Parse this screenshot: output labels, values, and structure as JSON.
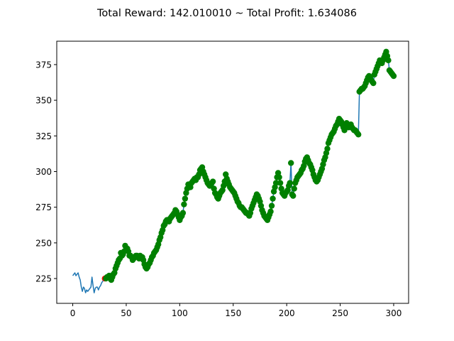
{
  "chart_data": {
    "type": "line",
    "title": "Total Reward: 142.010010 ~ Total Profit: 1.634086",
    "xlabel": "",
    "ylabel": "",
    "xlim": [
      -14.95,
      313.95
    ],
    "ylim": [
      207.6,
      391.4
    ],
    "xticks": [
      0,
      50,
      100,
      150,
      200,
      250,
      300
    ],
    "yticks": [
      225,
      250,
      275,
      300,
      325,
      350,
      375
    ],
    "grid": false,
    "legend": "none",
    "colors": {
      "line": "#1f77b4",
      "long": "#008000",
      "short": "#ff0000"
    },
    "series": [
      {
        "values": [
          227,
          228,
          229,
          227,
          228,
          229,
          226,
          224,
          219,
          216,
          219,
          218,
          215,
          217,
          216,
          217,
          218,
          219,
          226,
          220,
          215,
          218,
          219,
          219,
          217,
          219,
          220,
          222,
          223,
          225,
          225,
          225,
          226,
          226,
          227,
          225,
          224,
          226,
          228,
          229,
          232,
          234,
          236,
          238,
          239,
          243,
          241,
          242,
          244,
          248,
          246,
          246,
          244,
          241,
          241,
          240,
          238,
          239,
          240,
          241,
          241,
          240,
          239,
          241,
          240,
          240,
          238,
          235,
          233,
          232,
          233,
          235,
          236,
          238,
          240,
          241,
          243,
          244,
          245,
          247,
          249,
          252,
          254,
          257,
          259,
          262,
          263,
          265,
          266,
          266,
          265,
          267,
          268,
          269,
          270,
          271,
          273,
          272,
          270,
          268,
          266,
          268,
          269,
          271,
          277,
          281,
          285,
          288,
          291,
          290,
          289,
          292,
          293,
          294,
          295,
          294,
          296,
          296,
          298,
          301,
          302,
          303,
          300,
          298,
          296,
          294,
          292,
          291,
          290,
          291,
          292,
          293,
          288,
          285,
          284,
          282,
          281,
          283,
          285,
          286,
          287,
          290,
          293,
          298,
          295,
          293,
          291,
          289,
          288,
          287,
          286,
          285,
          283,
          281,
          279,
          278,
          276,
          275,
          275,
          274,
          273,
          272,
          271,
          271,
          270,
          269,
          271,
          274,
          276,
          278,
          280,
          282,
          284,
          283,
          281,
          279,
          276,
          273,
          271,
          269,
          268,
          267,
          266,
          268,
          270,
          272,
          276,
          281,
          286,
          289,
          292,
          296,
          299,
          296,
          292,
          288,
          285,
          284,
          283,
          285,
          286,
          287,
          290,
          292,
          306,
          284,
          283,
          288,
          292,
          294,
          296,
          297,
          298,
          299,
          301,
          302,
          304,
          307,
          309,
          310,
          308,
          306,
          305,
          303,
          301,
          298,
          296,
          294,
          293,
          294,
          296,
          298,
          300,
          302,
          305,
          308,
          310,
          313,
          316,
          320,
          322,
          324,
          326,
          327,
          328,
          330,
          332,
          333,
          335,
          337,
          336,
          335,
          333,
          331,
          329,
          332,
          334,
          333,
          331,
          332,
          333,
          331,
          330,
          329,
          329,
          328,
          327,
          326,
          356,
          357,
          358,
          358,
          359,
          360,
          362,
          364,
          366,
          367,
          366,
          364,
          363,
          362,
          368,
          370,
          372,
          374,
          376,
          378,
          377,
          376,
          378,
          380,
          382,
          384,
          381,
          378,
          371,
          370,
          369,
          368,
          367
        ]
      }
    ],
    "markers": {
      "short_x": [
        30
      ],
      "long_start": 31
    }
  }
}
